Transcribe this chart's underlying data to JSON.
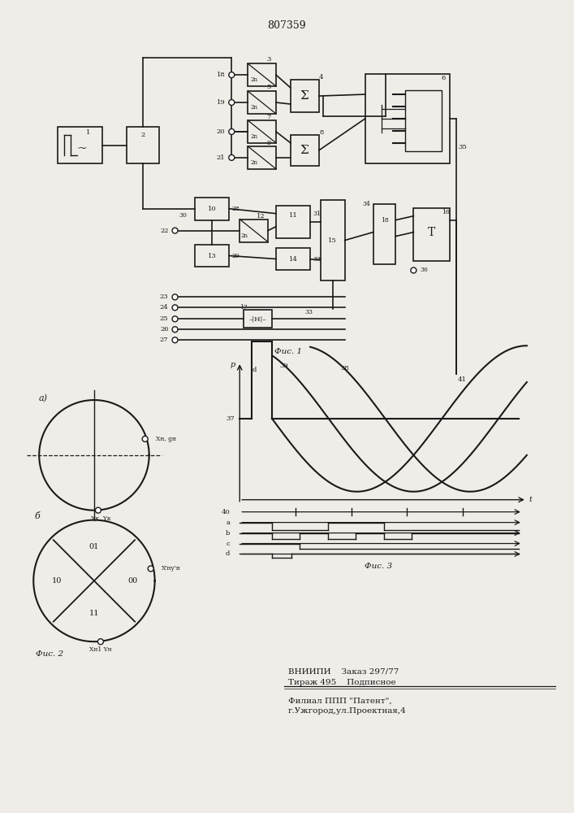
{
  "title": "807359",
  "bg_color": "#f0ede8",
  "line_color": "#1a1a1a",
  "footer_line1": "ВНИИПИ    Заказ 297/77",
  "footer_line2": "Тираж 495    Подписное",
  "footer_sep": "------------------------------------",
  "footer_line3": "Филиал ППП \"Патент\",",
  "footer_line4": "г.Ужгород,ул.Проектная,4"
}
